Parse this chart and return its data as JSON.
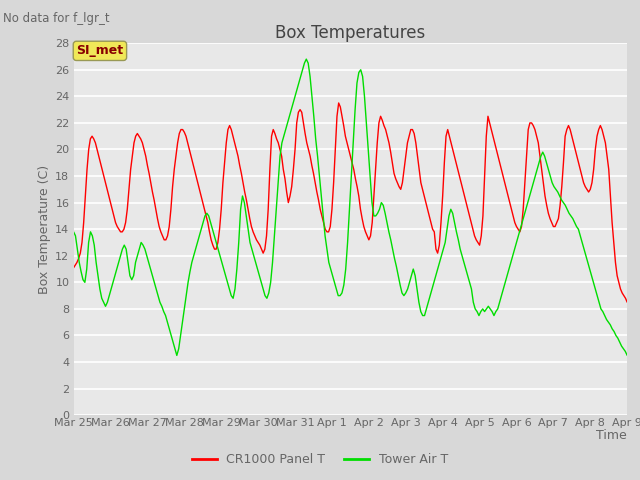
{
  "title": "Box Temperatures",
  "ylabel": "Box Temperature (C)",
  "xlabel": "Time",
  "top_left_text": "No data for f_lgr_t",
  "annotation_box": "SI_met",
  "ylim": [
    0,
    28
  ],
  "yticks": [
    0,
    2,
    4,
    6,
    8,
    10,
    12,
    14,
    16,
    18,
    20,
    22,
    24,
    26,
    28
  ],
  "xtick_labels": [
    "Mar 25",
    "Mar 26",
    "Mar 27",
    "Mar 28",
    "Mar 29",
    "Mar 30",
    "Mar 31",
    "Apr 1",
    "Apr 2",
    "Apr 3",
    "Apr 4",
    "Apr 5",
    "Apr 6",
    "Apr 7",
    "Apr 8",
    "Apr 9"
  ],
  "fig_bg_color": "#d8d8d8",
  "plot_bg_color": "#e8e8e8",
  "grid_color": "#ffffff",
  "line1_color": "#ff0000",
  "line2_color": "#00dd00",
  "line1_label": "CR1000 Panel T",
  "line2_label": "Tower Air T",
  "title_fontsize": 12,
  "label_fontsize": 9,
  "tick_fontsize": 8,
  "legend_fontsize": 9,
  "tick_color": "#666666",
  "title_color": "#444444",
  "cr1000_panel_t": [
    11.1,
    11.3,
    11.5,
    11.8,
    12.2,
    13.0,
    14.5,
    16.5,
    18.5,
    20.0,
    20.8,
    21.0,
    20.8,
    20.5,
    20.0,
    19.5,
    19.0,
    18.5,
    18.0,
    17.5,
    17.0,
    16.5,
    16.0,
    15.5,
    15.0,
    14.5,
    14.2,
    14.0,
    13.8,
    13.8,
    14.0,
    14.5,
    15.5,
    17.0,
    18.5,
    19.5,
    20.5,
    21.0,
    21.2,
    21.0,
    20.8,
    20.5,
    20.0,
    19.5,
    18.8,
    18.2,
    17.5,
    16.8,
    16.2,
    15.5,
    14.8,
    14.2,
    13.8,
    13.5,
    13.2,
    13.2,
    13.5,
    14.2,
    15.5,
    17.2,
    18.5,
    19.5,
    20.5,
    21.2,
    21.5,
    21.5,
    21.3,
    21.0,
    20.5,
    20.0,
    19.5,
    19.0,
    18.5,
    18.0,
    17.5,
    17.0,
    16.5,
    16.0,
    15.5,
    15.0,
    14.5,
    13.8,
    13.2,
    12.8,
    12.5,
    12.5,
    13.0,
    14.0,
    15.5,
    17.5,
    19.0,
    20.5,
    21.5,
    21.8,
    21.5,
    21.0,
    20.5,
    20.0,
    19.5,
    18.8,
    18.2,
    17.5,
    16.8,
    16.2,
    15.5,
    14.8,
    14.2,
    13.8,
    13.5,
    13.2,
    13.0,
    12.8,
    12.5,
    12.2,
    12.5,
    13.5,
    15.5,
    18.5,
    21.0,
    21.5,
    21.2,
    20.8,
    20.5,
    20.0,
    19.5,
    18.5,
    17.8,
    16.8,
    16.0,
    16.5,
    17.2,
    18.5,
    20.0,
    22.0,
    22.8,
    23.0,
    22.8,
    22.0,
    21.2,
    20.5,
    20.0,
    19.5,
    18.8,
    18.2,
    17.5,
    16.8,
    16.2,
    15.5,
    15.0,
    14.5,
    14.0,
    13.8,
    13.8,
    14.2,
    15.5,
    17.5,
    20.0,
    22.5,
    23.5,
    23.2,
    22.5,
    21.8,
    21.0,
    20.5,
    20.0,
    19.5,
    19.0,
    18.5,
    17.8,
    17.2,
    16.5,
    15.5,
    14.8,
    14.2,
    13.8,
    13.5,
    13.2,
    13.5,
    14.5,
    16.5,
    18.5,
    20.5,
    22.0,
    22.5,
    22.2,
    21.8,
    21.5,
    21.0,
    20.5,
    19.8,
    19.0,
    18.2,
    17.8,
    17.5,
    17.2,
    17.0,
    17.5,
    18.5,
    19.5,
    20.5,
    21.0,
    21.5,
    21.5,
    21.2,
    20.5,
    19.5,
    18.5,
    17.5,
    17.0,
    16.5,
    16.0,
    15.5,
    15.0,
    14.5,
    14.0,
    13.8,
    12.5,
    12.2,
    12.8,
    14.5,
    16.5,
    19.0,
    21.0,
    21.5,
    21.0,
    20.5,
    20.0,
    19.5,
    19.0,
    18.5,
    18.0,
    17.5,
    17.0,
    16.5,
    16.0,
    15.5,
    15.0,
    14.5,
    14.0,
    13.5,
    13.2,
    13.0,
    12.8,
    13.5,
    15.0,
    18.0,
    21.0,
    22.5,
    22.0,
    21.5,
    21.0,
    20.5,
    20.0,
    19.5,
    19.0,
    18.5,
    18.0,
    17.5,
    17.0,
    16.5,
    16.0,
    15.5,
    15.0,
    14.5,
    14.2,
    14.0,
    13.8,
    14.2,
    15.5,
    17.5,
    19.5,
    21.5,
    22.0,
    22.0,
    21.8,
    21.5,
    21.0,
    20.5,
    19.5,
    18.5,
    17.5,
    16.5,
    15.8,
    15.2,
    14.8,
    14.5,
    14.2,
    14.2,
    14.5,
    14.8,
    15.8,
    17.2,
    19.0,
    21.0,
    21.5,
    21.8,
    21.5,
    21.0,
    20.5,
    20.0,
    19.5,
    19.0,
    18.5,
    18.0,
    17.5,
    17.2,
    17.0,
    16.8,
    17.0,
    17.5,
    18.5,
    20.0,
    21.0,
    21.5,
    21.8,
    21.5,
    21.0,
    20.5,
    19.5,
    18.5,
    16.5,
    14.5,
    13.0,
    11.5,
    10.5,
    10.0,
    9.5,
    9.2,
    9.0,
    8.8,
    8.5
  ],
  "tower_air_t": [
    13.8,
    13.5,
    12.5,
    11.5,
    10.8,
    10.2,
    10.0,
    11.0,
    13.0,
    13.8,
    13.5,
    12.8,
    11.5,
    10.5,
    9.5,
    8.8,
    8.5,
    8.2,
    8.5,
    9.0,
    9.5,
    10.0,
    10.5,
    11.0,
    11.5,
    12.0,
    12.5,
    12.8,
    12.5,
    11.5,
    10.5,
    10.2,
    10.5,
    11.5,
    12.0,
    12.5,
    13.0,
    12.8,
    12.5,
    12.0,
    11.5,
    11.0,
    10.5,
    10.0,
    9.5,
    9.0,
    8.5,
    8.2,
    7.8,
    7.5,
    7.0,
    6.5,
    6.0,
    5.5,
    5.0,
    4.5,
    5.0,
    6.0,
    7.0,
    8.0,
    9.0,
    10.0,
    10.8,
    11.5,
    12.0,
    12.5,
    13.0,
    13.5,
    14.0,
    14.5,
    15.0,
    15.2,
    15.0,
    14.5,
    14.0,
    13.5,
    13.0,
    12.5,
    12.0,
    11.5,
    11.0,
    10.5,
    10.0,
    9.5,
    9.0,
    8.8,
    9.5,
    11.0,
    13.0,
    15.5,
    16.5,
    16.0,
    15.0,
    14.0,
    13.0,
    12.5,
    12.0,
    11.5,
    11.0,
    10.5,
    10.0,
    9.5,
    9.0,
    8.8,
    9.2,
    10.0,
    11.5,
    13.5,
    15.5,
    17.5,
    19.5,
    20.5,
    21.0,
    21.5,
    22.0,
    22.5,
    23.0,
    23.5,
    24.0,
    24.5,
    25.0,
    25.5,
    26.0,
    26.5,
    26.8,
    26.5,
    25.5,
    24.0,
    22.5,
    20.8,
    19.5,
    18.0,
    16.5,
    15.0,
    13.5,
    12.5,
    11.5,
    11.0,
    10.5,
    10.0,
    9.5,
    9.0,
    9.0,
    9.2,
    9.8,
    11.0,
    13.0,
    15.5,
    18.0,
    20.5,
    23.0,
    25.0,
    25.8,
    26.0,
    25.5,
    24.0,
    22.0,
    20.0,
    18.0,
    16.0,
    15.0,
    15.0,
    15.2,
    15.5,
    16.0,
    15.8,
    15.2,
    14.5,
    13.8,
    13.2,
    12.5,
    11.8,
    11.2,
    10.5,
    9.8,
    9.2,
    9.0,
    9.2,
    9.5,
    10.0,
    10.5,
    11.0,
    10.5,
    9.5,
    8.5,
    7.8,
    7.5,
    7.5,
    8.0,
    8.5,
    9.0,
    9.5,
    10.0,
    10.5,
    11.0,
    11.5,
    12.0,
    12.5,
    13.0,
    14.0,
    15.0,
    15.5,
    15.2,
    14.5,
    13.8,
    13.2,
    12.5,
    12.0,
    11.5,
    11.0,
    10.5,
    10.0,
    9.5,
    8.5,
    8.0,
    7.8,
    7.5,
    7.8,
    8.0,
    7.8,
    8.0,
    8.2,
    8.0,
    7.8,
    7.5,
    7.8,
    8.0,
    8.5,
    9.0,
    9.5,
    10.0,
    10.5,
    11.0,
    11.5,
    12.0,
    12.5,
    13.0,
    13.5,
    14.0,
    14.5,
    15.0,
    15.5,
    16.0,
    16.5,
    17.0,
    17.5,
    18.0,
    18.5,
    19.0,
    19.5,
    19.8,
    19.5,
    19.0,
    18.5,
    18.0,
    17.5,
    17.2,
    17.0,
    16.8,
    16.5,
    16.2,
    16.0,
    15.8,
    15.5,
    15.2,
    15.0,
    14.8,
    14.5,
    14.2,
    14.0,
    13.5,
    13.0,
    12.5,
    12.0,
    11.5,
    11.0,
    10.5,
    10.0,
    9.5,
    9.0,
    8.5,
    8.0,
    7.8,
    7.5,
    7.2,
    7.0,
    6.8,
    6.5,
    6.3,
    6.0,
    5.8,
    5.5,
    5.2,
    5.0,
    4.8,
    4.5
  ]
}
